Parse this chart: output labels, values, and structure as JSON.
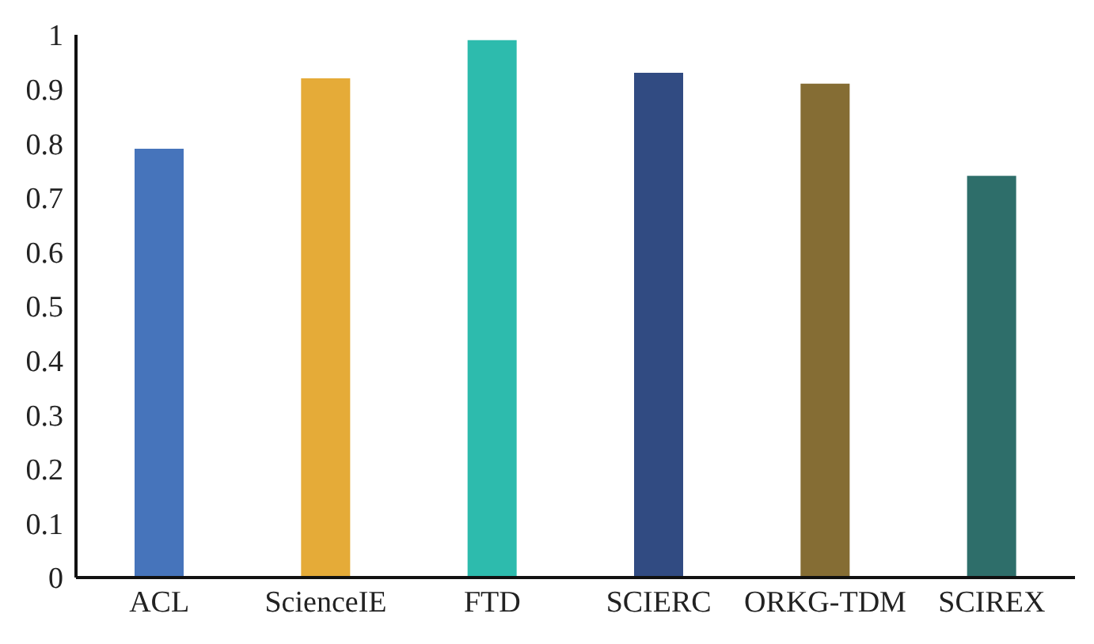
{
  "chart_data": {
    "type": "bar",
    "categories": [
      "ACL",
      "ScienceIE",
      "FTD",
      "SCIERC",
      "ORKG-TDM",
      "SCIREX"
    ],
    "values": [
      0.79,
      0.92,
      0.99,
      0.93,
      0.91,
      0.74
    ],
    "colors": [
      "#4674bb",
      "#e5ab38",
      "#2dbbad",
      "#314b82",
      "#856d34",
      "#2e6e6a"
    ],
    "ylim": [
      0,
      1
    ],
    "yticks": [
      0,
      {
        "value": 0.1,
        "label": "0.1"
      },
      {
        "value": 0.2,
        "label": "0.2"
      },
      {
        "value": 0.3,
        "label": "0.3"
      },
      {
        "value": 0.4,
        "label": "0.4"
      },
      {
        "value": 0.5,
        "label": "0.5"
      },
      {
        "value": 0.6,
        "label": "0.6"
      },
      {
        "value": 0.7,
        "label": "0.7"
      },
      {
        "value": 0.8,
        "label": "0.8"
      },
      {
        "value": 0.9,
        "label": "0.9"
      },
      1
    ]
  }
}
